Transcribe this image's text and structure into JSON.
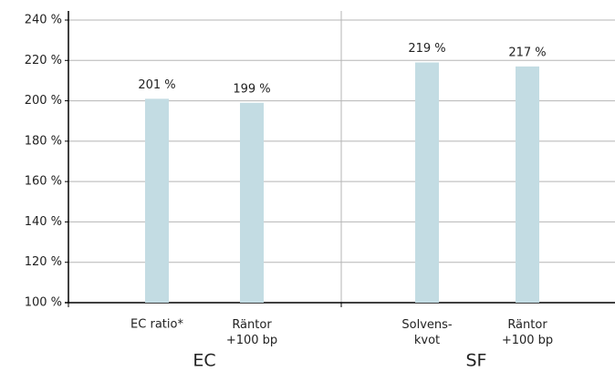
{
  "chart_data": {
    "type": "bar",
    "categories": [
      "EC ratio*",
      "Räntor\n+100 bp",
      "Solvens-\nkvot",
      "Räntor\n+100 bp"
    ],
    "values": [
      201,
      199,
      219,
      217
    ],
    "value_labels": [
      "201 %",
      "199 %",
      "219 %",
      "217 %"
    ],
    "groups": [
      "EC",
      "SF"
    ],
    "color": "#c3dce3",
    "ylim": [
      100,
      240
    ],
    "yticks": [
      {
        "value": 100,
        "label": "100 %"
      },
      {
        "value": 120,
        "label": "120 %"
      },
      {
        "value": 140,
        "label": "140 %"
      },
      {
        "value": 160,
        "label": "160 %"
      },
      {
        "value": 180,
        "label": "180 %"
      },
      {
        "value": 200,
        "label": "200 %"
      },
      {
        "value": 220,
        "label": "220 %"
      },
      {
        "value": 240,
        "label": "240 %"
      }
    ],
    "grid": true
  }
}
